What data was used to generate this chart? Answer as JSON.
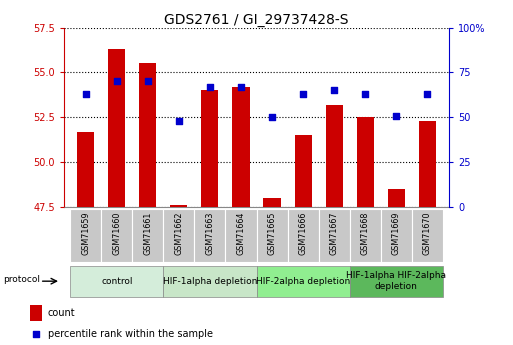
{
  "title": "GDS2761 / GI_29737428-S",
  "samples": [
    "GSM71659",
    "GSM71660",
    "GSM71661",
    "GSM71662",
    "GSM71663",
    "GSM71664",
    "GSM71665",
    "GSM71666",
    "GSM71667",
    "GSM71668",
    "GSM71669",
    "GSM71670"
  ],
  "count_values": [
    51.7,
    56.3,
    55.5,
    47.6,
    54.0,
    54.2,
    48.0,
    51.5,
    53.2,
    52.5,
    48.5,
    52.3
  ],
  "percentile_values": [
    63,
    70,
    70,
    48,
    67,
    67,
    50,
    63,
    65,
    63,
    51,
    63
  ],
  "ylim_left": [
    47.5,
    57.5
  ],
  "ylim_right": [
    0,
    100
  ],
  "yticks_left": [
    47.5,
    50,
    52.5,
    55,
    57.5
  ],
  "yticks_right": [
    0,
    25,
    50,
    75,
    100
  ],
  "bar_color": "#cc0000",
  "dot_color": "#0000cc",
  "bar_width": 0.55,
  "groups": [
    {
      "label": "control",
      "indices": [
        0,
        1,
        2
      ],
      "color": "#d4edda"
    },
    {
      "label": "HIF-1alpha depletion",
      "indices": [
        3,
        4,
        5
      ],
      "color": "#c8e6c8"
    },
    {
      "label": "HIF-2alpha depletion",
      "indices": [
        6,
        7,
        8
      ],
      "color": "#90ee90"
    },
    {
      "label": "HIF-1alpha HIF-2alpha\ndepletion",
      "indices": [
        9,
        10,
        11
      ],
      "color": "#5cb85c"
    }
  ],
  "protocol_label": "protocol",
  "legend_count_label": "count",
  "legend_percentile_label": "percentile rank within the sample",
  "left_axis_color": "#cc0000",
  "right_axis_color": "#0000cc",
  "title_fontsize": 10,
  "axis_tick_fontsize": 7,
  "group_label_fontsize": 6.5,
  "sample_label_fontsize": 5.8
}
